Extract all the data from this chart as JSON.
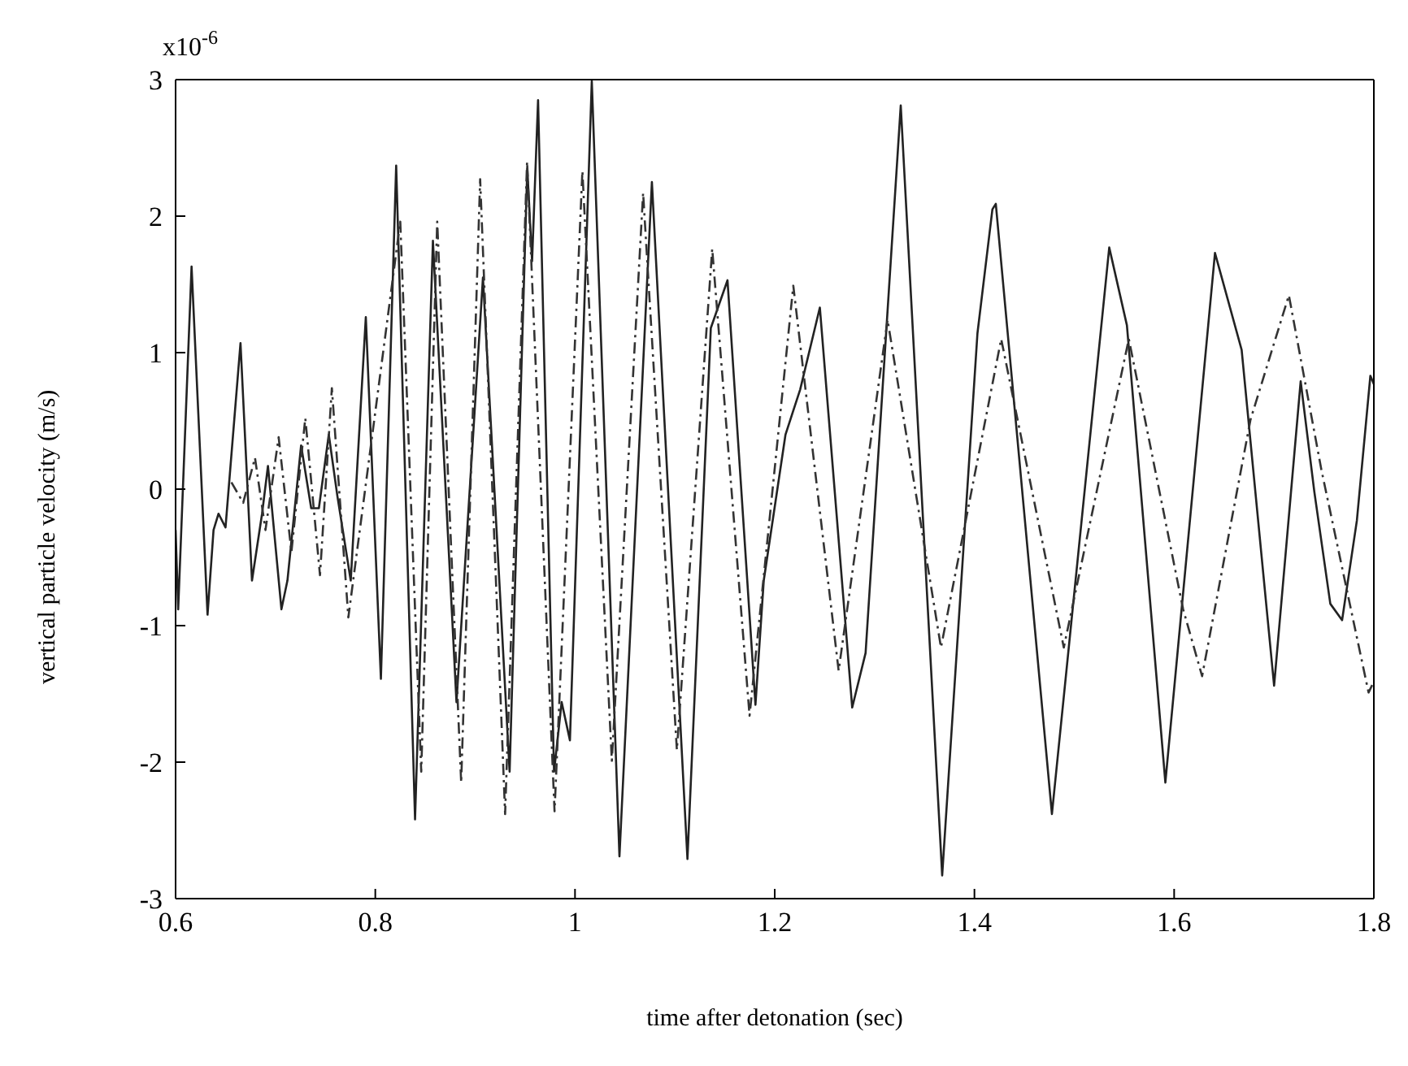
{
  "chart_data": {
    "type": "line",
    "xlabel": "time after detonation (sec)",
    "ylabel": "vertical particle velocity (m/s)",
    "annotations": [
      "x10$^{-6}$"
    ],
    "xlim": [
      0.6,
      1.8
    ],
    "xticks": [
      0.6,
      0.8,
      1,
      1.2,
      1.4,
      1.6,
      1.8
    ],
    "ylim": [
      -3,
      3
    ],
    "yticks": [
      -3,
      -2,
      -1,
      0,
      1,
      2,
      3
    ],
    "grid": false,
    "legend": false,
    "series": [
      {
        "color": "#222222",
        "line_style": "solid",
        "x": [
          0.6,
          0.6026,
          0.616,
          0.632,
          0.638,
          0.643,
          0.65,
          0.665,
          0.6765,
          0.6866,
          0.6925,
          0.706,
          0.712,
          0.7257,
          0.7358,
          0.7435,
          0.7534,
          0.762,
          0.7754,
          0.7905,
          0.8056,
          0.8209,
          0.8398,
          0.8577,
          0.8813,
          0.9078,
          0.9345,
          0.9522,
          0.957,
          0.963,
          0.979,
          0.9866,
          0.9949,
          1.0168,
          1.0445,
          1.077,
          1.1126,
          1.136,
          1.1527,
          1.1807,
          1.189,
          1.2108,
          1.2255,
          1.2452,
          1.2776,
          1.291,
          1.3262,
          1.3677,
          1.403,
          1.418,
          1.4214,
          1.4776,
          1.535,
          1.5527,
          1.5912,
          1.6409,
          1.6676,
          1.7001,
          1.7267,
          1.7404,
          1.7564,
          1.7682,
          1.783,
          1.7965,
          1.8
        ],
        "values": [
          -0.3,
          -0.88,
          1.63,
          -0.92,
          -0.3,
          -0.18,
          -0.28,
          1.07,
          -0.67,
          -0.18,
          0.17,
          -0.88,
          -0.67,
          0.32,
          -0.14,
          -0.14,
          0.4,
          -0.05,
          -0.67,
          1.26,
          -1.39,
          2.37,
          -2.42,
          1.82,
          -1.56,
          1.55,
          -2.07,
          2.35,
          1.67,
          2.85,
          -2.07,
          -1.56,
          -1.84,
          2.99,
          -2.69,
          2.25,
          -2.71,
          1.18,
          1.53,
          -1.58,
          -0.67,
          0.4,
          0.73,
          1.33,
          -1.6,
          -1.2,
          2.81,
          -2.83,
          1.14,
          2.05,
          2.09,
          -2.38,
          1.77,
          1.2,
          -2.15,
          1.73,
          1.02,
          -1.44,
          0.79,
          -0.02,
          -0.84,
          -0.96,
          -0.23,
          0.83,
          0.77
        ]
      },
      {
        "color": "#333333",
        "line_style": "dashed",
        "x": [
          0.6559,
          0.6677,
          0.6795,
          0.69,
          0.7032,
          0.716,
          0.7299,
          0.7446,
          0.7565,
          0.773,
          0.825,
          0.846,
          0.862,
          0.886,
          0.905,
          0.93,
          0.952,
          0.9795,
          1.0074,
          1.0369,
          1.0682,
          1.102,
          1.1374,
          1.1748,
          1.2186,
          1.264,
          1.313,
          1.3665,
          1.4268,
          1.4895,
          1.5546,
          1.609,
          1.628,
          1.6765,
          1.7149,
          1.7475,
          1.7947,
          1.8
        ],
        "values": [
          0.05,
          -0.1,
          0.23,
          -0.3,
          0.38,
          -0.46,
          0.52,
          -0.63,
          0.74,
          -0.94,
          1.96,
          -2.07,
          1.96,
          -2.15,
          2.27,
          -2.38,
          2.4,
          -2.36,
          2.33,
          -1.99,
          2.17,
          -1.91,
          1.76,
          -1.66,
          1.49,
          -1.33,
          1.24,
          -1.16,
          1.1,
          -1.16,
          1.1,
          -0.88,
          -1.37,
          0.51,
          1.42,
          0.14,
          -1.49,
          -1.41
        ]
      }
    ]
  }
}
